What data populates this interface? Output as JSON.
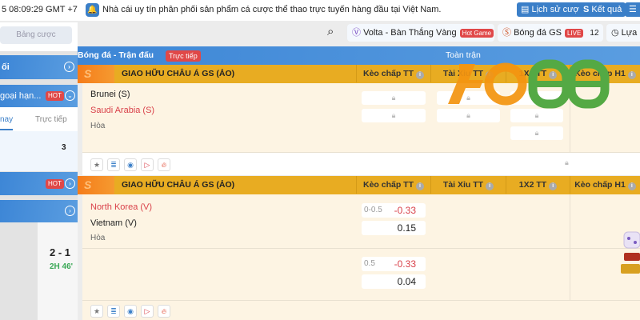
{
  "topbar": {
    "time": "5 08:09:29 GMT +7",
    "notice": "Nhà cái uy tín phân phối sản phẩm cá cược thể thao trực tuyến hàng đầu tại Việt Nam.",
    "history_label": "Lịch sử cược",
    "results_label": "Kết quả"
  },
  "sidebar": {
    "search_placeholder": "Bảng cược",
    "items": [
      {
        "label": "ối"
      },
      {
        "label": "goại hạn...",
        "badge": "HOT"
      },
      {
        "label": "",
        "badge": "HOT"
      },
      {
        "label": ""
      }
    ],
    "tabs": [
      "nay",
      "Trực tiếp"
    ],
    "count": "3",
    "score": "2 - 1",
    "match_time": "2H 46'"
  },
  "gametabs": [
    {
      "label": "Volta - Bàn Thắng Vàng",
      "badge": "Hot Game"
    },
    {
      "label": "Bóng đá GS",
      "badge": "LIVE",
      "count": "12"
    },
    {
      "label": "Lựa"
    }
  ],
  "header": {
    "title": "Bóng đá - Trận đấu",
    "live": "Trực tiếp",
    "period": "Toàn trận"
  },
  "columns": [
    "Kèo chấp TT",
    "Tài Xỉu TT",
    "1X2 TT",
    "Kèo chấp H1"
  ],
  "leagues": [
    {
      "name": "GIAO HỮU CHÂU Á GS (ẢO)",
      "home": "Brunei (S)",
      "away": "Saudi Arabia (S)",
      "draw": "Hòa"
    },
    {
      "name": "GIAO HỮU CHÂU Á GS (ẢO)",
      "home": "North Korea (V)",
      "away": "Vietnam (V)",
      "draw": "Hòa",
      "odds": [
        {
          "line": "0-0.5",
          "home": "-0.33",
          "away": "0.15"
        },
        {
          "line": "0.5",
          "home": "-0.33",
          "away": "0.04"
        }
      ]
    }
  ],
  "watermark": "4O88",
  "colors": {
    "blue": "#3d86d6",
    "yellow": "#e8ac22",
    "red": "#d9414a",
    "green": "#3aa856"
  }
}
